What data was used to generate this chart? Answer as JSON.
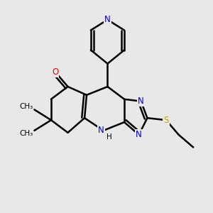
{
  "bg_color": "#e8e8e8",
  "bond_color": "#000000",
  "bond_width": 1.8,
  "atom_colors": {
    "N": "#0000cc",
    "O": "#ff0000",
    "S": "#bbaa00",
    "C": "#000000",
    "H": "#000000"
  },
  "font_size": 8.5
}
